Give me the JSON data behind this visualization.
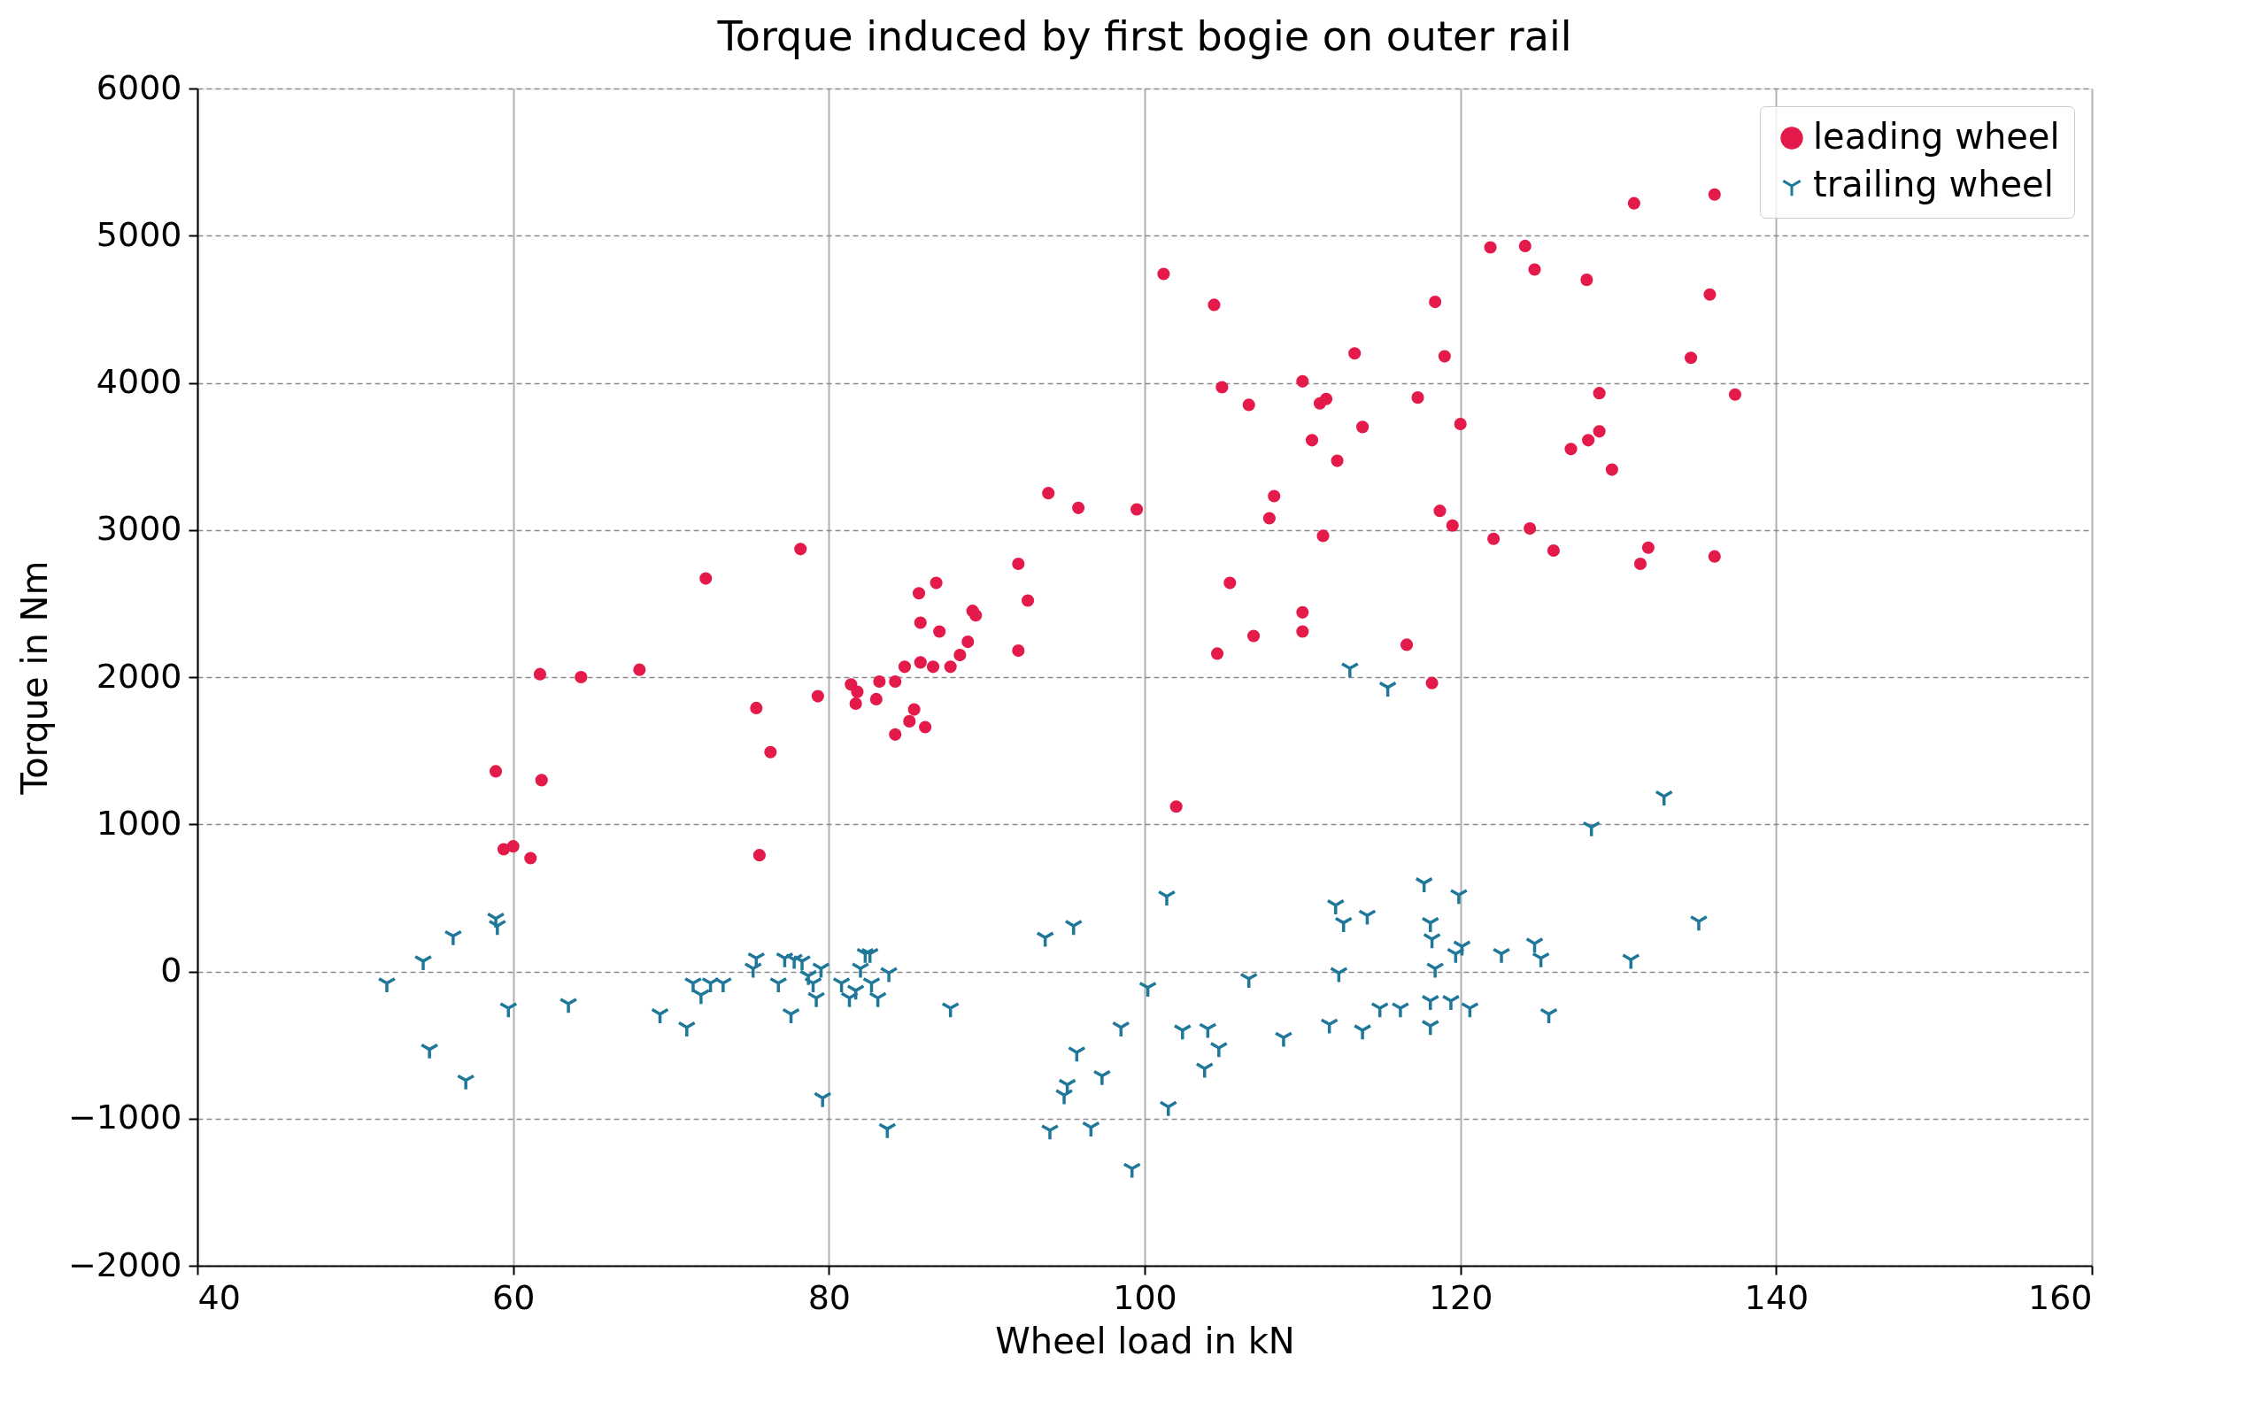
{
  "chart_data": {
    "type": "scatter",
    "title": "Torque induced by first bogie on outer rail",
    "xlabel": "Wheel load in kN",
    "ylabel": "Torque in Nm",
    "xlim": [
      40,
      160
    ],
    "xticks": [
      40,
      60,
      80,
      100,
      120,
      140,
      160
    ],
    "ylim": [
      -2000,
      6000
    ],
    "yticks": [
      {
        "value": -2000,
        "label": "−2000"
      },
      {
        "value": -1000,
        "label": "−1000"
      },
      0,
      1000,
      2000,
      3000,
      4000,
      5000,
      6000
    ],
    "grid": true,
    "legend": "top right",
    "series": [
      {
        "name": "leading wheel",
        "color": "#e31a4a",
        "marker": "circle",
        "x": [
          101.2,
          104.4,
          104.9,
          106.6,
          110.0,
          111.1,
          111.5,
          113.3,
          110.6,
          112.2,
          113.8,
          117.3,
          118.4,
          119.0,
          120.0,
          121.9,
          124.1,
          124.7,
          128.0,
          135.8,
          134.6,
          137.4,
          128.8,
          127.0,
          128.1,
          128.8,
          129.6,
          131.0,
          136.1,
          118.7,
          119.5,
          122.1,
          124.4,
          125.9,
          131.4,
          131.9,
          136.1,
          111.3,
          108.2,
          107.9,
          105.4,
          110.0,
          110.0,
          106.9,
          104.6,
          116.6,
          118.2,
          102.0,
          93.9,
          95.8,
          99.5,
          92.0,
          92.6,
          92.0,
          78.2,
          72.2,
          86.8,
          85.7,
          89.1,
          89.3,
          85.8,
          87.0,
          88.8,
          88.3,
          87.7,
          86.6,
          85.8,
          84.8,
          84.2,
          83.2,
          85.4,
          85.1,
          86.1,
          84.2,
          81.4,
          81.8,
          81.7,
          83.0,
          79.3,
          75.4,
          76.3,
          75.6,
          68.0,
          64.3,
          61.7,
          61.8,
          58.9,
          59.4,
          60.0,
          61.1
        ],
        "values": [
          4740,
          4530,
          3970,
          3850,
          4010,
          3860,
          3890,
          4200,
          3610,
          3470,
          3700,
          3900,
          4550,
          4180,
          3720,
          4920,
          4930,
          4770,
          4700,
          4600,
          4170,
          3920,
          3930,
          3550,
          3610,
          3670,
          3410,
          5220,
          5280,
          3130,
          3030,
          2940,
          3010,
          2860,
          2770,
          2880,
          2820,
          2960,
          3230,
          3080,
          2640,
          2440,
          2310,
          2280,
          2160,
          2220,
          1960,
          1120,
          3250,
          3150,
          3140,
          2770,
          2520,
          2180,
          2870,
          2670,
          2640,
          2570,
          2450,
          2420,
          2370,
          2310,
          2240,
          2150,
          2070,
          2070,
          2100,
          2070,
          1970,
          1970,
          1780,
          1700,
          1660,
          1610,
          1950,
          1900,
          1820,
          1850,
          1870,
          1790,
          1490,
          790,
          2050,
          2000,
          2020,
          1300,
          1360,
          830,
          850,
          770
        ]
      },
      {
        "name": "trailing wheel",
        "color": "#1f7799",
        "marker": "cross",
        "x": [
          52.0,
          54.3,
          56.2,
          58.9,
          59.0,
          54.7,
          57.0,
          59.7,
          63.5,
          69.3,
          71.0,
          71.4,
          71.9,
          72.5,
          73.3,
          75.2,
          75.4,
          76.8,
          77.6,
          77.2,
          77.8,
          78.3,
          78.7,
          79.0,
          79.2,
          79.5,
          79.6,
          80.8,
          81.3,
          81.7,
          82.0,
          82.3,
          82.6,
          82.7,
          83.1,
          83.8,
          83.7,
          87.7,
          93.7,
          95.5,
          94.0,
          95.1,
          94.9,
          95.7,
          96.6,
          97.3,
          98.5,
          99.2,
          100.2,
          101.4,
          101.5,
          102.4,
          104.0,
          103.8,
          104.7,
          106.6,
          108.8,
          111.7,
          112.1,
          112.6,
          112.3,
          114.1,
          113.8,
          114.9,
          116.2,
          113.0,
          115.4,
          117.7,
          118.1,
          118.2,
          118.1,
          118.1,
          118.4,
          119.7,
          120.1,
          119.9,
          119.4,
          120.6,
          122.6,
          124.7,
          125.1,
          125.6,
          128.3,
          130.8,
          132.9,
          135.1
        ],
        "values": [
          -80,
          70,
          240,
          360,
          310,
          -530,
          -740,
          -250,
          -220,
          -290,
          -380,
          -80,
          -160,
          -80,
          -80,
          20,
          90,
          -80,
          -290,
          90,
          80,
          70,
          -30,
          -80,
          -180,
          20,
          -860,
          -80,
          -180,
          -130,
          20,
          120,
          120,
          -80,
          -180,
          -10,
          -1070,
          -250,
          230,
          310,
          -1080,
          -770,
          -840,
          -550,
          -1060,
          -710,
          -380,
          -1340,
          -110,
          510,
          -920,
          -400,
          -390,
          -660,
          -520,
          -50,
          -450,
          -360,
          450,
          330,
          -10,
          380,
          -400,
          -250,
          -250,
          2060,
          1930,
          600,
          330,
          220,
          -200,
          -370,
          20,
          120,
          170,
          520,
          -200,
          -250,
          120,
          190,
          90,
          -290,
          980,
          80,
          1190,
          340
        ]
      }
    ]
  }
}
